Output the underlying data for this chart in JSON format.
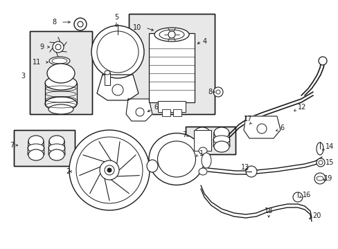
{
  "bg_color": "#ffffff",
  "line_color": "#1a1a1a",
  "fig_width": 4.89,
  "fig_height": 3.6,
  "dpi": 100,
  "gray_fill": "#e8e8e8",
  "light_gray": "#d0d0d0"
}
